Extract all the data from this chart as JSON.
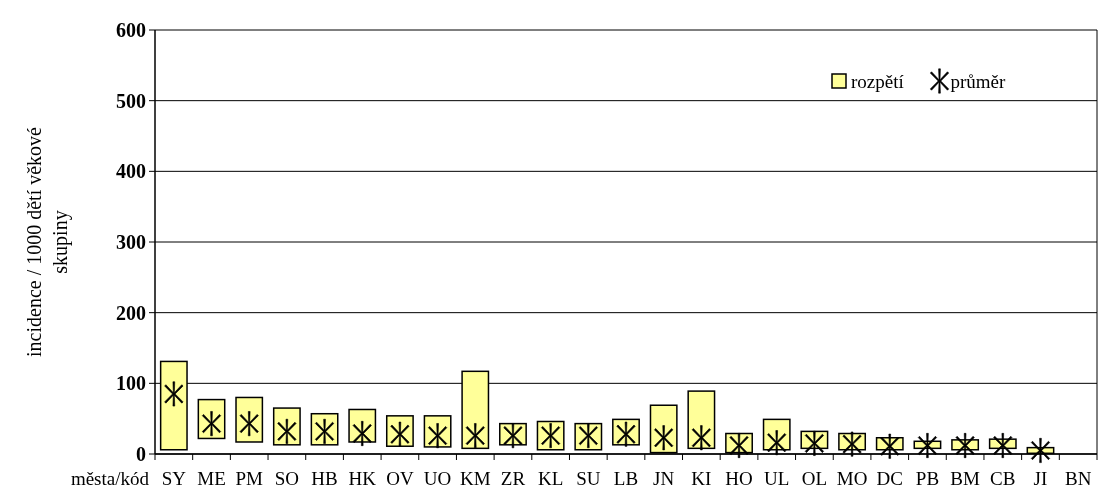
{
  "chart_data": {
    "type": "bar",
    "xlabel": "města/kód",
    "ylabel": "incidence / 1000 dětí věkové skupiny",
    "categories": [
      "SY",
      "ME",
      "PM",
      "SO",
      "HB",
      "HK",
      "OV",
      "UO",
      "KM",
      "ZR",
      "KL",
      "SU",
      "LB",
      "JN",
      "KI",
      "HO",
      "UL",
      "OL",
      "MO",
      "DC",
      "PB",
      "BM",
      "CB",
      "JI",
      "BN"
    ],
    "series": [
      {
        "name": "rozpětí",
        "color": "#ffff99",
        "base": [
          6,
          22,
          17,
          13,
          13,
          17,
          11,
          10,
          8,
          13,
          6,
          6,
          13,
          2,
          8,
          2,
          6,
          8,
          6,
          6,
          8,
          6,
          8,
          1,
          null
        ],
        "values": [
          125,
          55,
          63,
          52,
          44,
          46,
          43,
          44,
          109,
          30,
          40,
          37,
          36,
          67,
          81,
          27,
          43,
          24,
          23,
          17,
          10,
          14,
          13,
          8,
          null
        ]
      },
      {
        "name": "průměr",
        "type": "scatter",
        "marker": "star",
        "color": "#000000",
        "x": [
          "SY",
          "ME",
          "PM",
          "SO",
          "HB",
          "HK",
          "OV",
          "UO",
          "KM",
          "ZR",
          "KL",
          "SU",
          "LB",
          "JN",
          "KI",
          "HO",
          "UL",
          "OL",
          "MO",
          "DC",
          "PB",
          "BM",
          "CB",
          "JI",
          "BN"
        ],
        "values": [
          85,
          43,
          43,
          32,
          32,
          29,
          28,
          26,
          26,
          26,
          26,
          26,
          28,
          23,
          23,
          12,
          16,
          15,
          14,
          11,
          12,
          12,
          12,
          5,
          null
        ]
      }
    ],
    "ylim": [
      0,
      600
    ],
    "yticks": [
      0,
      100,
      200,
      300,
      400,
      500,
      600
    ],
    "grid": "y",
    "legend": "top right"
  }
}
